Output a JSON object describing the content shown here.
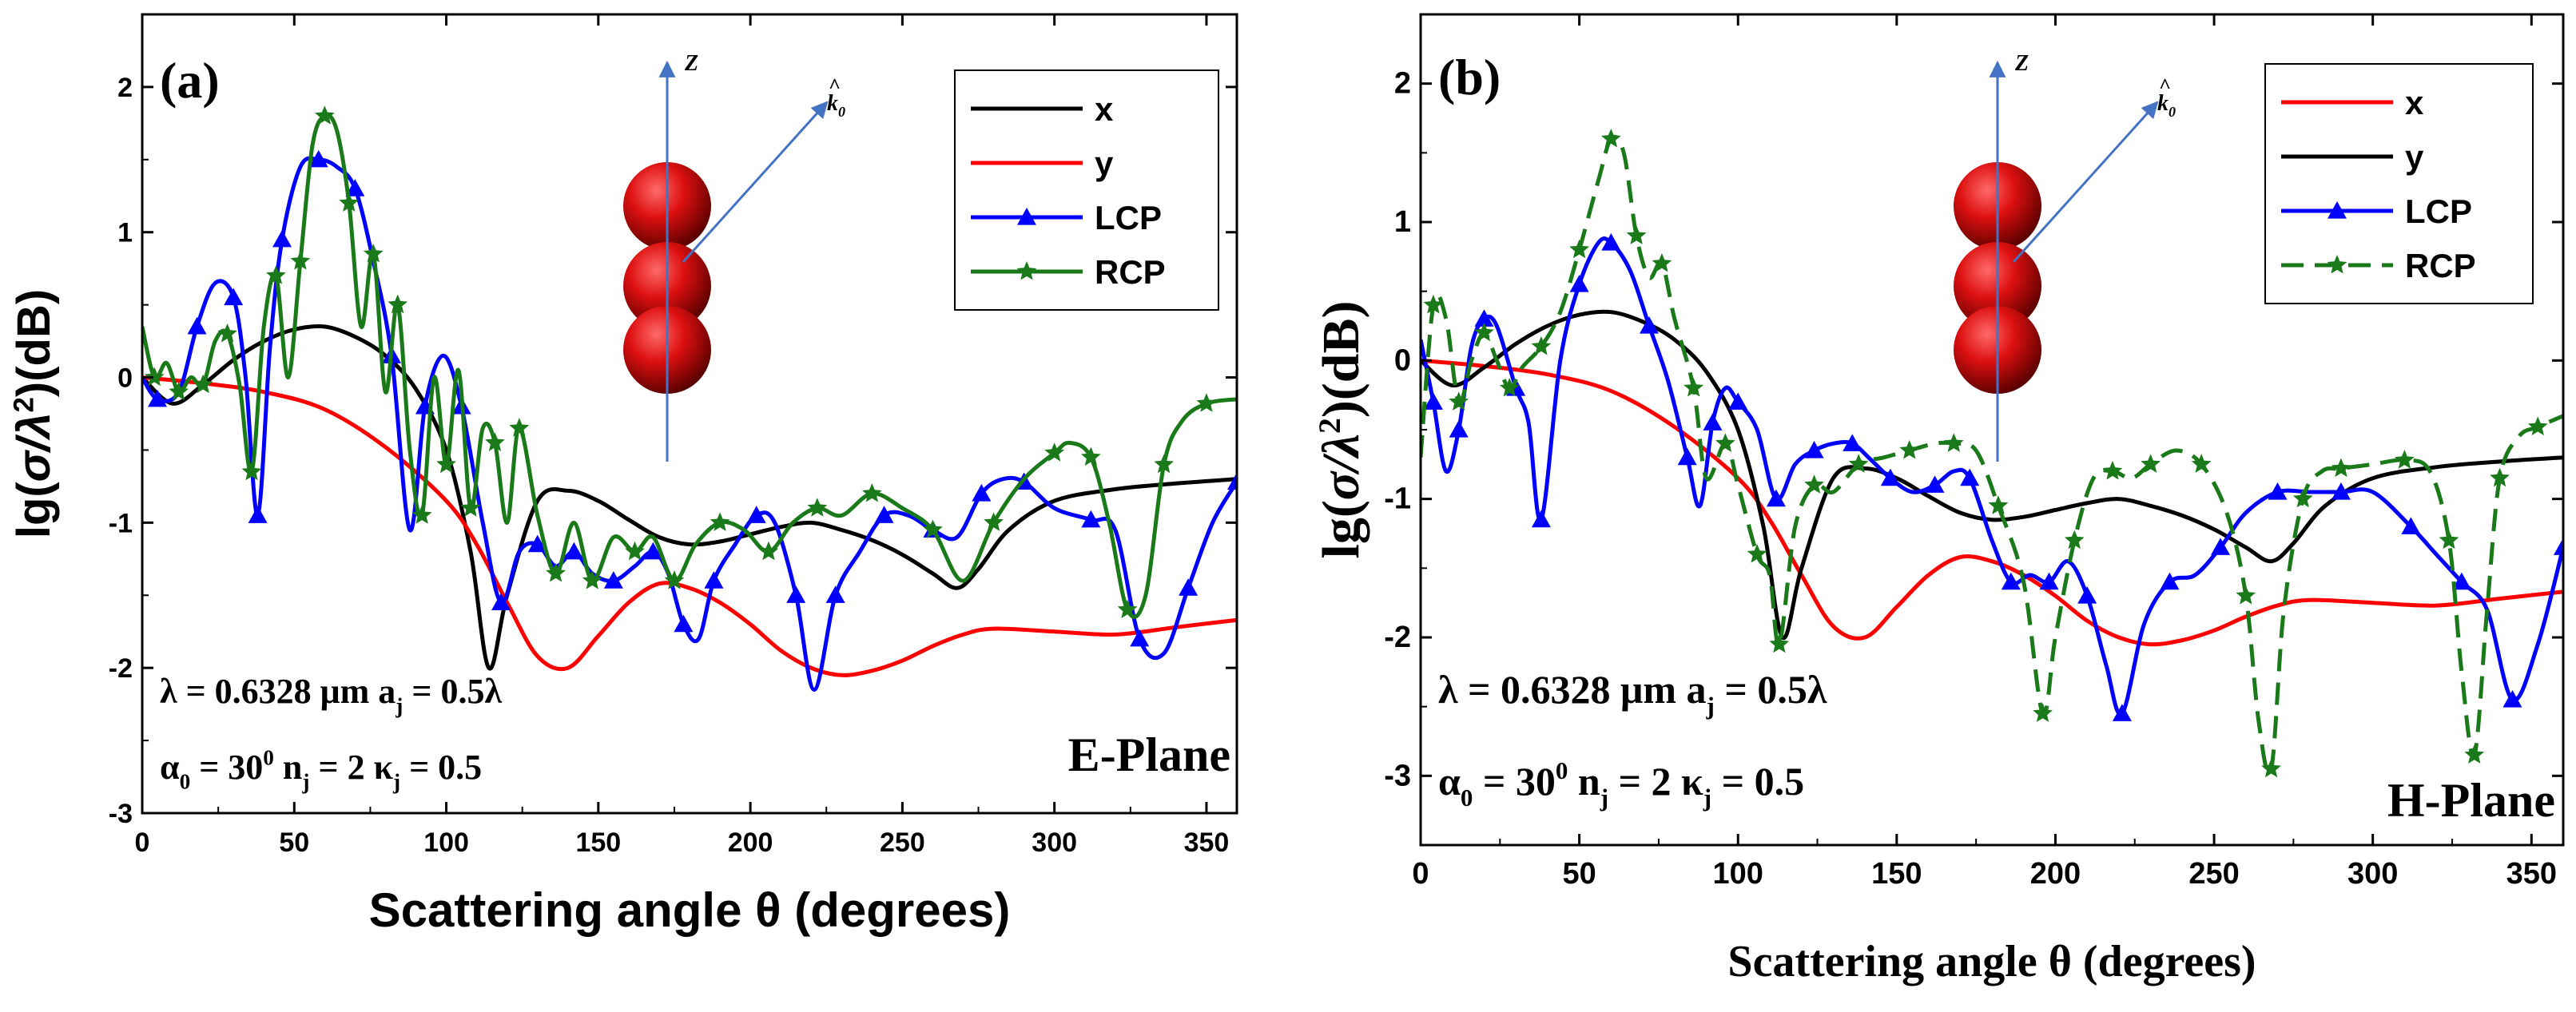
{
  "colors": {
    "red": "#ff0000",
    "black": "#000000",
    "blue": "#0000ff",
    "green": "#1a7a1a",
    "axis_blue": "#4472c4"
  },
  "chart_data": [
    {
      "type": "line",
      "panel_label": "(a)",
      "xlabel": "Scattering angle θ (degrees)",
      "ylabel_parts": [
        "lg(",
        "σ/λ",
        "2",
        ")(dB)"
      ],
      "xlim": [
        0,
        360
      ],
      "ylim": [
        -3,
        2.5
      ],
      "xticks": [
        0,
        50,
        100,
        150,
        200,
        250,
        300,
        350
      ],
      "yticks": [
        -3,
        -2,
        -1,
        0,
        1,
        2
      ],
      "grid": false,
      "legend_position": "top-right",
      "params_line1": {
        "lambda": "λ = 0.6328 μm",
        "a_main": "a",
        "a_sub": "j",
        "a_rest": " = 0.5λ"
      },
      "params_line2": {
        "alpha_main": "α",
        "alpha_sub": "0",
        "alpha_eq": " = 30",
        "alpha_sup": "0",
        "n_main": " n",
        "n_sub": "j",
        "n_rest": " = 2  κ",
        "k_sub": "j",
        "k_rest": " = 0.5"
      },
      "plane_label": "E-Plane",
      "inset": {
        "z_label": "Z",
        "k_label": "k",
        "k_sub": "0",
        "k_hat": "^"
      },
      "series": [
        {
          "name": "x",
          "color": "#000000",
          "marker": "none",
          "dash": false,
          "x": [
            0,
            10,
            20,
            30,
            40,
            50,
            60,
            70,
            80,
            90,
            100,
            108,
            114,
            120,
            130,
            140,
            150,
            160,
            170,
            180,
            190,
            200,
            210,
            220,
            230,
            240,
            250,
            260,
            268,
            275,
            285,
            300,
            320,
            340,
            360
          ],
          "y": [
            0,
            -0.18,
            -0.05,
            0.12,
            0.25,
            0.33,
            0.35,
            0.28,
            0.15,
            -0.08,
            -0.5,
            -1.2,
            -2.0,
            -1.5,
            -0.85,
            -0.78,
            -0.85,
            -0.98,
            -1.1,
            -1.15,
            -1.13,
            -1.08,
            -1.03,
            -1.0,
            -1.05,
            -1.12,
            -1.22,
            -1.35,
            -1.45,
            -1.32,
            -1.05,
            -0.85,
            -0.77,
            -0.73,
            -0.7
          ]
        },
        {
          "name": "y",
          "color": "#ff0000",
          "marker": "none",
          "dash": false,
          "x": [
            0,
            20,
            40,
            60,
            80,
            100,
            110,
            120,
            130,
            140,
            150,
            160,
            170,
            180,
            190,
            200,
            210,
            220,
            230,
            240,
            250,
            260,
            270,
            280,
            300,
            320,
            340,
            360
          ],
          "y": [
            0,
            -0.04,
            -0.1,
            -0.22,
            -0.48,
            -0.85,
            -1.15,
            -1.55,
            -1.92,
            -2.0,
            -1.78,
            -1.55,
            -1.42,
            -1.45,
            -1.55,
            -1.7,
            -1.88,
            -2.0,
            -2.05,
            -2.02,
            -1.95,
            -1.85,
            -1.77,
            -1.73,
            -1.75,
            -1.77,
            -1.72,
            -1.67
          ]
        },
        {
          "name": "LCP",
          "color": "#0000ff",
          "marker": "triangle",
          "dash": false,
          "x": [
            0,
            5,
            12,
            18,
            24,
            30,
            34,
            38,
            42,
            46,
            52,
            58,
            64,
            70,
            76,
            82,
            88,
            93,
            99,
            105,
            112,
            118,
            124,
            130,
            136,
            142,
            148,
            155,
            162,
            168,
            173,
            178,
            183,
            188,
            195,
            202,
            208,
            215,
            221,
            228,
            236,
            244,
            252,
            260,
            268,
            276,
            283,
            290,
            300,
            312,
            320,
            328,
            336,
            344,
            352,
            360
          ],
          "y": [
            0,
            -0.15,
            -0.1,
            0.35,
            0.65,
            0.55,
            0.0,
            -0.95,
            0.2,
            0.95,
            1.45,
            1.5,
            1.45,
            1.3,
            0.8,
            0.15,
            -1.05,
            -0.2,
            0.15,
            -0.2,
            -1.0,
            -1.55,
            -1.2,
            -1.15,
            -1.3,
            -1.2,
            -1.35,
            -1.4,
            -1.3,
            -1.2,
            -1.35,
            -1.7,
            -1.8,
            -1.4,
            -1.15,
            -0.95,
            -1.0,
            -1.5,
            -2.15,
            -1.5,
            -1.2,
            -0.95,
            -0.95,
            -1.05,
            -1.1,
            -0.8,
            -0.7,
            -0.72,
            -0.9,
            -0.98,
            -1.05,
            -1.8,
            -1.9,
            -1.45,
            -1.0,
            -0.72
          ]
        },
        {
          "name": "RCP",
          "color": "#1a7a1a",
          "marker": "star",
          "dash": false,
          "x": [
            0,
            4,
            8,
            12,
            16,
            20,
            24,
            28,
            32,
            36,
            40,
            44,
            48,
            52,
            56,
            60,
            64,
            68,
            72,
            76,
            80,
            84,
            88,
            92,
            96,
            100,
            104,
            108,
            112,
            116,
            120,
            124,
            130,
            136,
            142,
            148,
            155,
            162,
            168,
            175,
            182,
            190,
            198,
            206,
            214,
            222,
            230,
            240,
            250,
            260,
            270,
            280,
            290,
            300,
            305,
            312,
            318,
            324,
            330,
            336,
            342,
            350,
            360
          ],
          "y": [
            0.35,
            0.0,
            0.1,
            -0.1,
            0.0,
            -0.05,
            0.25,
            0.3,
            -0.05,
            -0.65,
            0.35,
            0.7,
            0.0,
            0.8,
            1.6,
            1.8,
            1.7,
            1.2,
            0.35,
            0.85,
            -0.1,
            0.5,
            -0.5,
            -0.95,
            0.0,
            -0.6,
            0.05,
            -0.9,
            -0.35,
            -0.45,
            -1.0,
            -0.35,
            -0.95,
            -1.35,
            -1.0,
            -1.4,
            -1.1,
            -1.2,
            -1.1,
            -1.4,
            -1.15,
            -1.0,
            -1.05,
            -1.2,
            -1.0,
            -0.9,
            -0.95,
            -0.8,
            -0.9,
            -1.05,
            -1.4,
            -1.0,
            -0.7,
            -0.52,
            -0.45,
            -0.55,
            -1.0,
            -1.6,
            -1.5,
            -0.6,
            -0.3,
            -0.18,
            -0.15
          ]
        }
      ]
    },
    {
      "type": "line",
      "panel_label": "(b)",
      "xlabel": "Scattering angle θ (degrees)",
      "ylabel_parts": [
        "lg(",
        "σ/λ",
        "2",
        ")(dB)"
      ],
      "xlim": [
        0,
        360
      ],
      "ylim": [
        -3.5,
        2.5
      ],
      "xticks": [
        0,
        50,
        100,
        150,
        200,
        250,
        300,
        350
      ],
      "yticks": [
        -3,
        -2,
        -1,
        0,
        1,
        2
      ],
      "grid": false,
      "legend_position": "top-right",
      "params_line1": {
        "lambda": "λ = 0.6328 μm",
        "a_main": "a",
        "a_sub": "j",
        "a_rest": " = 0.5λ"
      },
      "params_line2": {
        "alpha_main": "α",
        "alpha_sub": "0",
        "alpha_eq": " = 30",
        "alpha_sup": "0",
        "n_main": " n",
        "n_sub": "j",
        "n_rest": " = 2  κ",
        "k_sub": "j",
        "k_rest": " = 0.5"
      },
      "plane_label": "H-Plane",
      "inset": {
        "z_label": "Z",
        "k_label": "k",
        "k_sub": "0",
        "k_hat": "^"
      },
      "series": [
        {
          "name": "x",
          "color": "#ff0000",
          "marker": "none",
          "dash": false,
          "x": [
            0,
            20,
            40,
            60,
            80,
            100,
            110,
            120,
            130,
            140,
            150,
            160,
            170,
            180,
            190,
            200,
            210,
            220,
            230,
            240,
            250,
            260,
            270,
            280,
            300,
            320,
            340,
            360
          ],
          "y": [
            0,
            -0.04,
            -0.1,
            -0.22,
            -0.48,
            -0.85,
            -1.15,
            -1.55,
            -1.92,
            -2.0,
            -1.78,
            -1.55,
            -1.42,
            -1.45,
            -1.55,
            -1.7,
            -1.88,
            -2.0,
            -2.05,
            -2.02,
            -1.95,
            -1.85,
            -1.77,
            -1.73,
            -1.75,
            -1.77,
            -1.72,
            -1.67
          ]
        },
        {
          "name": "y",
          "color": "#000000",
          "marker": "none",
          "dash": false,
          "x": [
            0,
            10,
            20,
            30,
            40,
            50,
            60,
            70,
            80,
            90,
            100,
            108,
            114,
            120,
            130,
            140,
            150,
            160,
            170,
            180,
            190,
            200,
            210,
            220,
            230,
            240,
            250,
            260,
            268,
            275,
            285,
            300,
            320,
            340,
            360
          ],
          "y": [
            0,
            -0.18,
            -0.05,
            0.12,
            0.25,
            0.33,
            0.35,
            0.28,
            0.15,
            -0.08,
            -0.5,
            -1.2,
            -2.0,
            -1.5,
            -0.85,
            -0.78,
            -0.85,
            -0.98,
            -1.1,
            -1.15,
            -1.13,
            -1.08,
            -1.03,
            -1.0,
            -1.05,
            -1.12,
            -1.22,
            -1.35,
            -1.45,
            -1.32,
            -1.05,
            -0.85,
            -0.77,
            -0.73,
            -0.7
          ]
        },
        {
          "name": "LCP",
          "color": "#0000ff",
          "marker": "triangle",
          "dash": false,
          "x": [
            0,
            4,
            8,
            12,
            16,
            20,
            24,
            30,
            34,
            38,
            44,
            50,
            56,
            60,
            66,
            72,
            78,
            84,
            88,
            92,
            96,
            100,
            106,
            112,
            118,
            124,
            130,
            136,
            142,
            148,
            155,
            162,
            168,
            173,
            180,
            186,
            192,
            198,
            204,
            210,
            216,
            221,
            228,
            236,
            244,
            252,
            260,
            270,
            280,
            290,
            300,
            312,
            320,
            328,
            336,
            344,
            352,
            360
          ],
          "y": [
            0.15,
            -0.3,
            -0.8,
            -0.5,
            0.1,
            0.3,
            0.25,
            -0.2,
            -0.45,
            -1.15,
            0.0,
            0.55,
            0.85,
            0.85,
            0.65,
            0.25,
            -0.15,
            -0.7,
            -1.05,
            -0.45,
            -0.2,
            -0.3,
            -0.5,
            -1.0,
            -0.75,
            -0.65,
            -0.6,
            -0.6,
            -0.72,
            -0.85,
            -0.95,
            -0.9,
            -0.8,
            -0.85,
            -1.3,
            -1.6,
            -1.55,
            -1.6,
            -1.45,
            -1.7,
            -2.2,
            -2.55,
            -1.9,
            -1.6,
            -1.55,
            -1.35,
            -1.1,
            -0.95,
            -0.95,
            -0.95,
            -0.95,
            -1.2,
            -1.4,
            -1.6,
            -1.8,
            -2.45,
            -2.05,
            -1.35
          ]
        },
        {
          "name": "RCP",
          "color": "#1a7a1a",
          "marker": "star",
          "dash": true,
          "x": [
            0,
            4,
            8,
            12,
            16,
            20,
            24,
            28,
            32,
            38,
            44,
            50,
            56,
            60,
            64,
            68,
            72,
            76,
            80,
            86,
            90,
            96,
            100,
            106,
            110,
            113,
            118,
            124,
            130,
            138,
            146,
            154,
            162,
            168,
            175,
            182,
            190,
            196,
            200,
            206,
            212,
            218,
            224,
            230,
            238,
            246,
            254,
            260,
            264,
            268,
            272,
            278,
            284,
            290,
            300,
            310,
            318,
            324,
            328,
            332,
            336,
            340,
            346,
            352,
            360
          ],
          "y": [
            -0.7,
            0.4,
            0.3,
            -0.3,
            0.0,
            0.2,
            0.0,
            -0.2,
            -0.05,
            0.1,
            0.35,
            0.8,
            1.3,
            1.6,
            1.5,
            0.9,
            0.6,
            0.7,
            0.3,
            -0.2,
            -0.85,
            -0.6,
            -0.9,
            -1.4,
            -1.55,
            -2.05,
            -1.2,
            -0.9,
            -0.95,
            -0.75,
            -0.7,
            -0.65,
            -0.6,
            -0.6,
            -0.65,
            -1.05,
            -1.6,
            -2.55,
            -2.0,
            -1.3,
            -0.85,
            -0.8,
            -0.85,
            -0.75,
            -0.65,
            -0.75,
            -1.1,
            -1.7,
            -2.6,
            -2.95,
            -1.8,
            -1.0,
            -0.8,
            -0.78,
            -0.75,
            -0.72,
            -0.8,
            -1.3,
            -2.25,
            -2.85,
            -1.8,
            -0.85,
            -0.55,
            -0.48,
            -0.4
          ]
        }
      ]
    }
  ]
}
